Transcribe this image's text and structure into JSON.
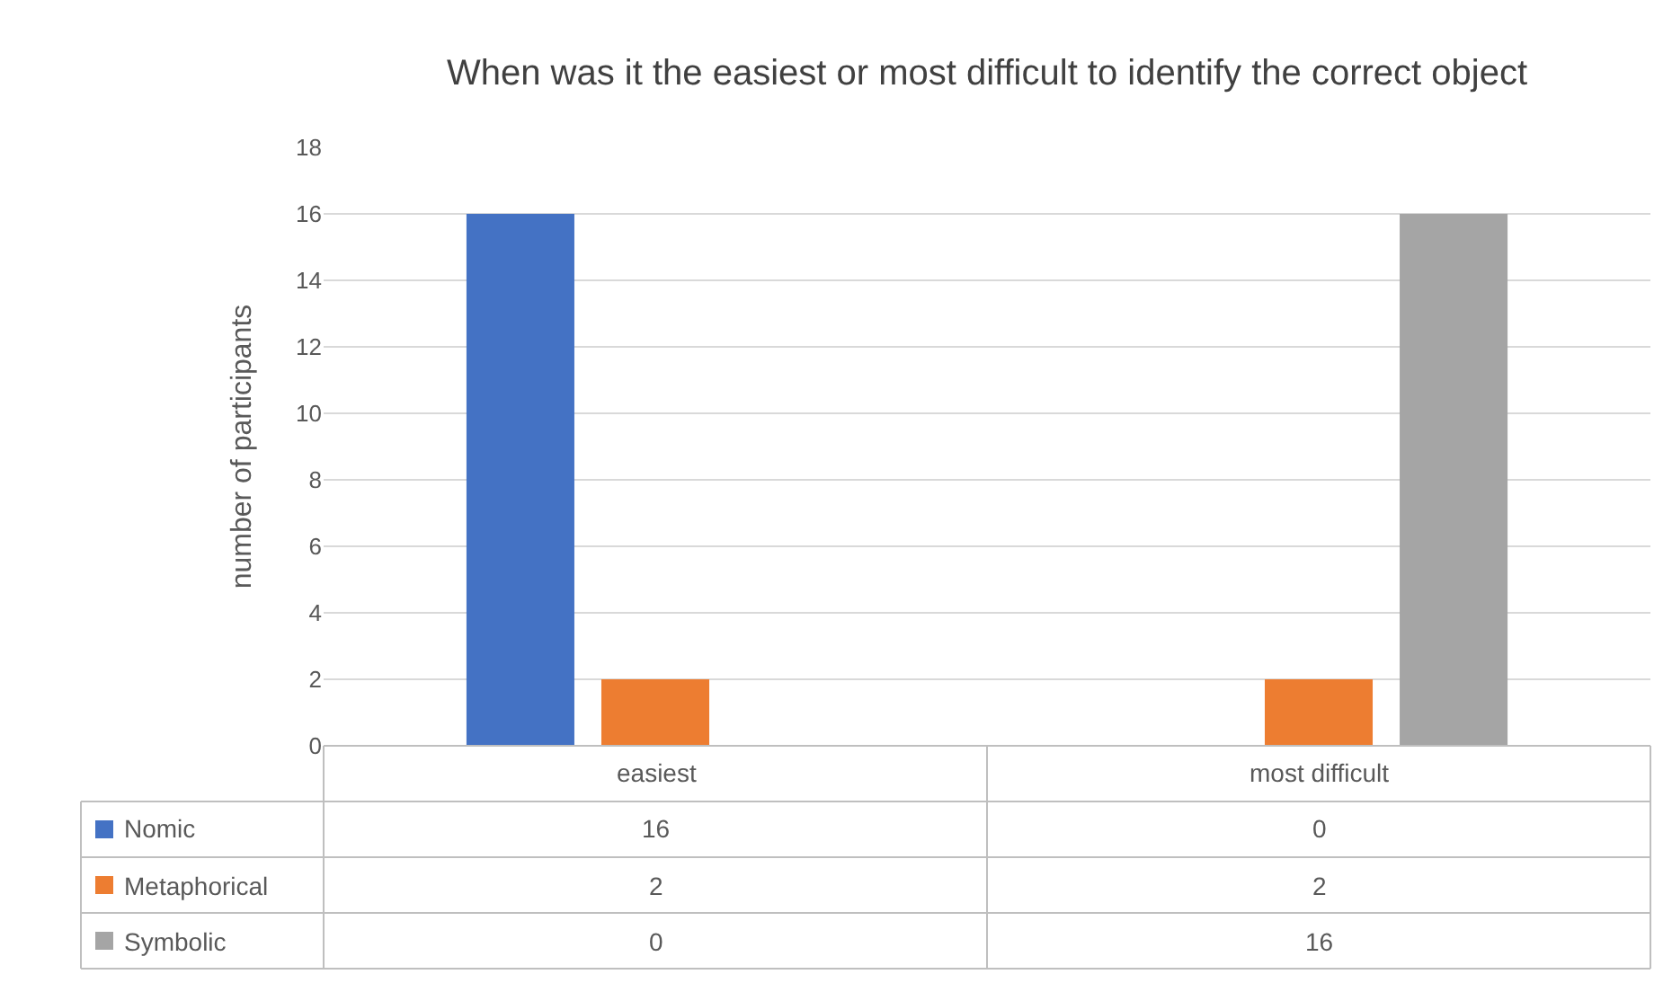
{
  "chart_data": {
    "type": "bar",
    "title": "When was it the easiest or most difficult to identify the correct object",
    "ylabel": "number of participants",
    "categories": [
      "easiest",
      "most difficult"
    ],
    "series": [
      {
        "name": "Nomic",
        "color": "#4472c4",
        "values": [
          16,
          0
        ]
      },
      {
        "name": "Metaphorical",
        "color": "#ed7d31",
        "values": [
          2,
          2
        ]
      },
      {
        "name": "Symbolic",
        "color": "#a5a5a5",
        "values": [
          0,
          16
        ]
      }
    ],
    "ylim": [
      0,
      18
    ],
    "yticks": [
      0,
      2,
      4,
      6,
      8,
      10,
      12,
      14,
      16,
      18
    ],
    "grid": "y",
    "data_labels": true,
    "legend": "bottom"
  }
}
